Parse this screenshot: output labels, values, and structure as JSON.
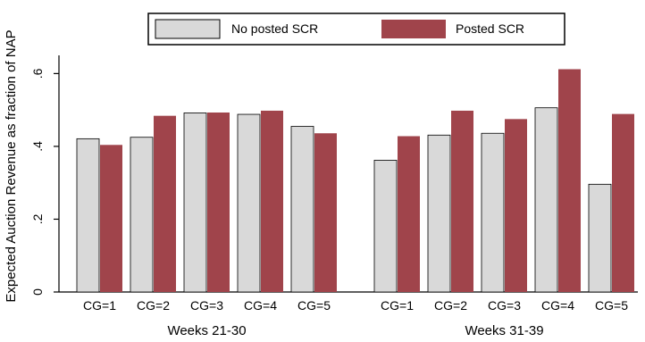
{
  "chart_data": {
    "type": "bar",
    "ylabel": "Expected Auction Revenue as fraction of NAP",
    "ylim": [
      0,
      0.65
    ],
    "yticks": [
      {
        "value": 0,
        "label": "0"
      },
      {
        "value": 0.2,
        "label": ".2"
      },
      {
        "value": 0.4,
        "label": ".4"
      },
      {
        "value": 0.6,
        "label": ".6"
      }
    ],
    "legend": {
      "position": "top-center",
      "entries": [
        "No posted SCR",
        "Posted SCR"
      ]
    },
    "colors": {
      "No posted SCR": "#d9d9d9",
      "Posted SCR": "#a0444b"
    },
    "grid": false,
    "panels": [
      {
        "group_label": "Weeks 21-30",
        "categories": [
          "CG=1",
          "CG=2",
          "CG=3",
          "CG=4",
          "CG=5"
        ],
        "series": [
          {
            "name": "No posted SCR",
            "values": [
              0.421,
              0.425,
              0.492,
              0.488,
              0.455
            ]
          },
          {
            "name": "Posted SCR",
            "values": [
              0.404,
              0.484,
              0.493,
              0.498,
              0.436
            ]
          }
        ]
      },
      {
        "group_label": "Weeks 31-39",
        "categories": [
          "CG=1",
          "CG=2",
          "CG=3",
          "CG=4",
          "CG=5"
        ],
        "series": [
          {
            "name": "No posted SCR",
            "values": [
              0.362,
              0.431,
              0.436,
              0.506,
              0.296
            ]
          },
          {
            "name": "Posted SCR",
            "values": [
              0.428,
              0.498,
              0.475,
              0.612,
              0.489
            ]
          }
        ]
      }
    ]
  }
}
